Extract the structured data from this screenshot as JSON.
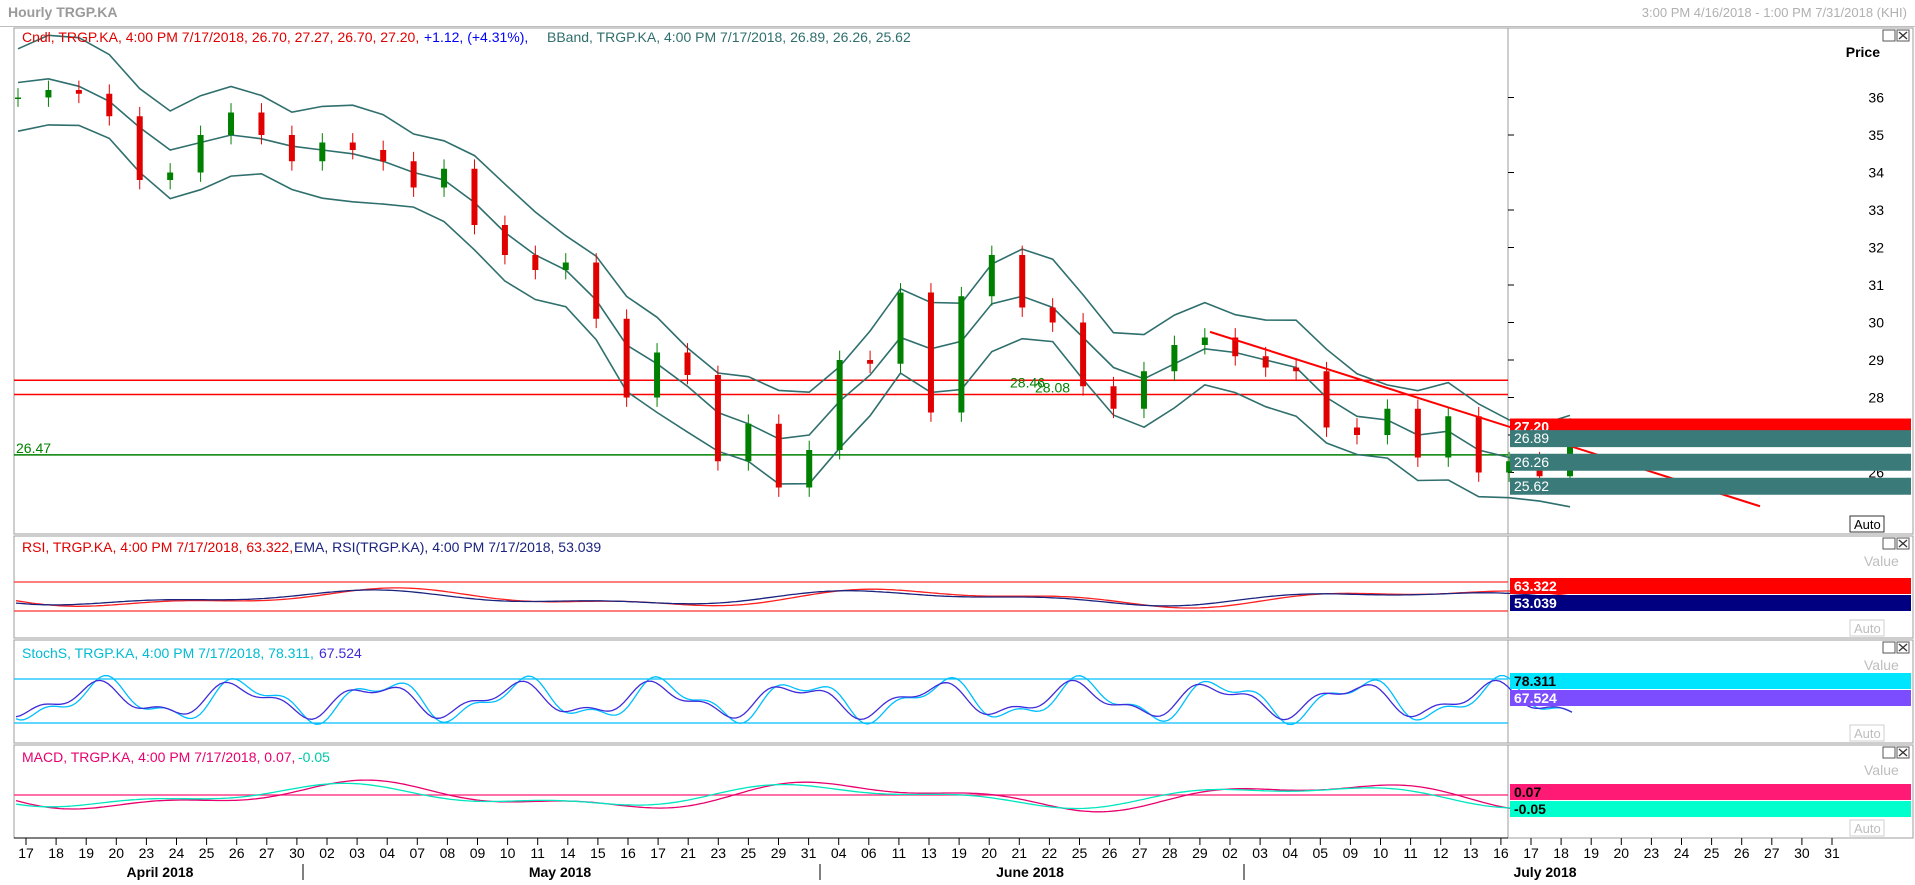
{
  "window": {
    "title": "Hourly TRGP.KA",
    "range": "3:00 PM 4/16/2018 - 1:00 PM 7/31/2018 (KHI)"
  },
  "price_panel": {
    "legend_candle": "Cndl, TRGP.KA, 4:00 PM 7/17/2018, 26.70, 27.27, 26.70, 27.20,",
    "legend_change": "+1.12, (+4.31%),",
    "legend_bband": "BBand, TRGP.KA, 4:00 PM 7/17/2018, 26.89, 26.26, 25.62",
    "axis_title": "Price",
    "yticks": [
      "36",
      "35",
      "34",
      "33",
      "32",
      "31",
      "30",
      "29",
      "28",
      "27",
      "26"
    ],
    "hlines": [
      {
        "label": "28.46",
        "value": 28.46,
        "color": "#ff0000"
      },
      {
        "label": "28.08",
        "value": 28.08,
        "color": "#ff0000"
      },
      {
        "label": "26.47",
        "value": 26.47,
        "color": "#008000"
      }
    ],
    "badges": [
      {
        "text": "27.20",
        "bg": "#ff0000",
        "fg": "#ffffff"
      },
      {
        "text": "26.89",
        "bg": "#3a7a78",
        "fg": "#ffffff"
      },
      {
        "text": "26.26",
        "bg": "#3a7a78",
        "fg": "#ffffff"
      },
      {
        "text": "25.62",
        "bg": "#3a7a78",
        "fg": "#ffffff"
      }
    ],
    "auto_label": "Auto"
  },
  "rsi_panel": {
    "legend_rsi": "RSI, TRGP.KA, 4:00 PM 7/17/2018, 63.322,",
    "legend_ema": "EMA, RSI(TRGP.KA), 4:00 PM 7/17/2018, 53.039",
    "axis_title": "Value",
    "badges": [
      {
        "text": "63.322",
        "bg": "#ff0000",
        "fg": "#ffffff"
      },
      {
        "text": "53.039",
        "bg": "#000080",
        "fg": "#ffffff"
      }
    ],
    "auto_label": "Auto"
  },
  "stoch_panel": {
    "legend_k": "StochS, TRGP.KA, 4:00 PM 7/17/2018, 78.311,",
    "legend_d": "67.524",
    "axis_title": "Value",
    "badges": [
      {
        "text": "78.311",
        "bg": "#00e5ff",
        "fg": "#000000"
      },
      {
        "text": "67.524",
        "bg": "#7b4dff",
        "fg": "#ffffff"
      }
    ],
    "auto_label": "Auto"
  },
  "macd_panel": {
    "legend_macd": "MACD, TRGP.KA, 4:00 PM 7/17/2018, 0.07,",
    "legend_signal": "-0.05",
    "axis_title": "Value",
    "badges": [
      {
        "text": "0.07",
        "bg": "#ff1a75",
        "fg": "#000000"
      },
      {
        "text": "-0.05",
        "bg": "#00ffcc",
        "fg": "#000000"
      }
    ],
    "auto_label": "Auto"
  },
  "x_axis": {
    "day_labels": [
      "17",
      "18",
      "19",
      "20",
      "23",
      "24",
      "25",
      "26",
      "27",
      "30",
      "02",
      "03",
      "04",
      "07",
      "08",
      "09",
      "10",
      "11",
      "14",
      "15",
      "16",
      "17",
      "21",
      "23",
      "25",
      "29",
      "31",
      "04",
      "06",
      "11",
      "13",
      "19",
      "20",
      "21",
      "22",
      "25",
      "26",
      "27",
      "28",
      "29",
      "02",
      "03",
      "04",
      "05",
      "09",
      "10",
      "11",
      "12",
      "13",
      "16",
      "17",
      "18",
      "19",
      "20",
      "23",
      "24",
      "25",
      "26",
      "27",
      "30",
      "31"
    ],
    "month_labels": [
      "April 2018",
      "May 2018",
      "June 2018",
      "July 2018"
    ]
  },
  "chart_data": {
    "type": "line",
    "title": "Hourly TRGP.KA",
    "time_range": "3:00 PM 4/16/2018 - 1:00 PM 7/31/2018",
    "x": [
      "Apr 16",
      "Apr 17",
      "Apr 18",
      "Apr 19",
      "Apr 20",
      "Apr 23",
      "Apr 24",
      "Apr 25",
      "Apr 26",
      "Apr 27",
      "Apr 30",
      "May 02",
      "May 03",
      "May 04",
      "May 07",
      "May 08",
      "May 09",
      "May 10",
      "May 11",
      "May 14",
      "May 15",
      "May 16",
      "May 17",
      "May 21",
      "May 23",
      "May 25",
      "May 29",
      "May 31",
      "Jun 04",
      "Jun 06",
      "Jun 11",
      "Jun 13",
      "Jun 19",
      "Jun 20",
      "Jun 21",
      "Jun 22",
      "Jun 25",
      "Jun 26",
      "Jun 27",
      "Jun 28",
      "Jun 29",
      "Jul 02",
      "Jul 03",
      "Jul 04",
      "Jul 05",
      "Jul 09",
      "Jul 10",
      "Jul 11",
      "Jul 12",
      "Jul 13",
      "Jul 16",
      "Jul 17"
    ],
    "ylim": [
      25,
      37
    ],
    "series": [
      {
        "name": "Cndl",
        "values": [
          36.0,
          36.2,
          36.1,
          35.5,
          33.8,
          34.0,
          35.0,
          35.6,
          35.0,
          34.3,
          34.8,
          34.6,
          34.3,
          33.6,
          34.1,
          32.6,
          31.8,
          31.4,
          31.6,
          30.1,
          28.0,
          29.2,
          28.6,
          26.3,
          27.3,
          25.6,
          26.6,
          29.0,
          28.9,
          30.8,
          27.6,
          30.7,
          31.8,
          30.4,
          30.0,
          28.3,
          27.7,
          28.7,
          29.4,
          29.6,
          29.1,
          28.8,
          28.7,
          27.2,
          27.0,
          27.7,
          26.4,
          27.5,
          26.0,
          26.3,
          25.9,
          27.2
        ]
      },
      {
        "name": "BBand",
        "values": [
          36.4,
          36.5,
          36.3,
          35.9,
          35.2,
          34.6,
          34.8,
          35.0,
          34.9,
          34.7,
          34.6,
          34.5,
          34.3,
          34.0,
          33.8,
          33.2,
          32.4,
          31.8,
          31.4,
          30.6,
          29.4,
          28.9,
          28.3,
          27.6,
          27.3,
          26.9,
          27.0,
          27.9,
          28.6,
          29.6,
          29.3,
          29.5,
          30.5,
          30.7,
          30.4,
          29.6,
          28.8,
          28.5,
          28.9,
          29.3,
          29.2,
          29.0,
          28.8,
          28.0,
          27.5,
          27.4,
          27.0,
          27.1,
          26.6,
          26.4,
          26.2,
          26.26
        ]
      }
    ],
    "indicators": {
      "RSI": {
        "value": 63.322,
        "ema": 53.039,
        "bands": [
          70,
          30
        ]
      },
      "StochS": {
        "k": 78.311,
        "d": 67.524,
        "bands": [
          80,
          20
        ]
      },
      "MACD": {
        "macd": 0.07,
        "signal": -0.05
      }
    }
  }
}
